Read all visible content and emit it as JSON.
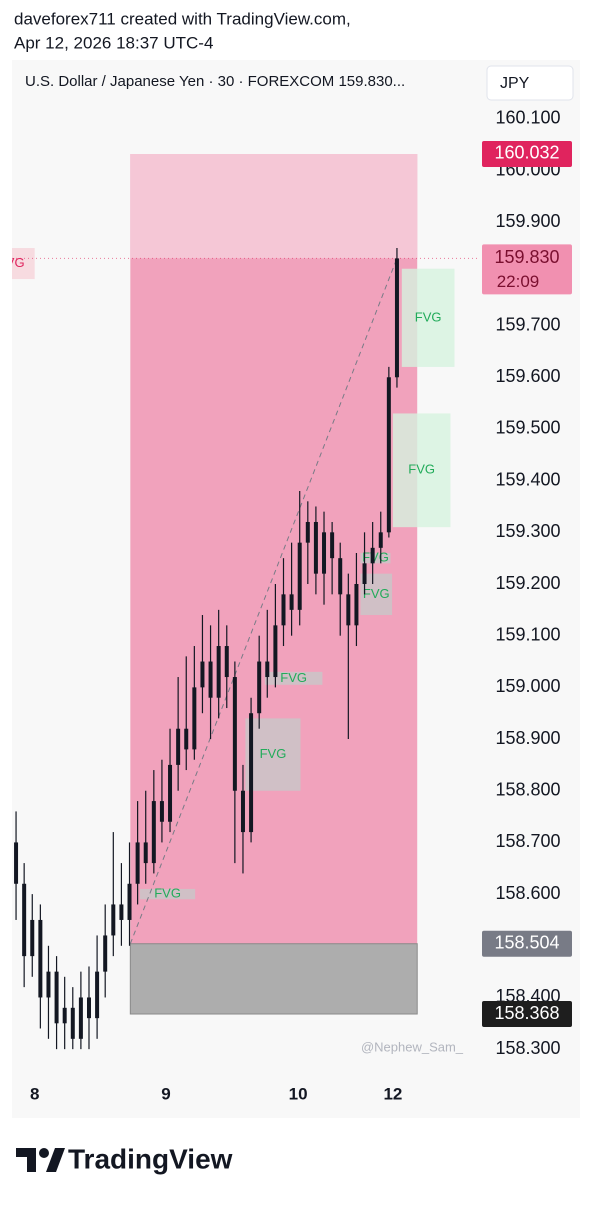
{
  "header": {
    "line1": "daveforex711 created with TradingView.com,",
    "line2": "Apr 12, 2026 18:37 UTC-4"
  },
  "chart_data": {
    "type": "candlestick",
    "title": "U.S. Dollar / Japanese Yen · 30 · FOREXCOM  159.830...",
    "currency": "JPY",
    "color": "#131722",
    "open": [
      158.7,
      158.62,
      158.48,
      158.55,
      158.4,
      158.45,
      158.35,
      158.38,
      158.32,
      158.4,
      158.36,
      158.45,
      158.52,
      158.58,
      158.55,
      158.62,
      158.7,
      158.66,
      158.78,
      158.74,
      158.85,
      158.92,
      158.88,
      159.0,
      159.05,
      158.98,
      159.08,
      159.02,
      158.8,
      158.72,
      158.95,
      159.05,
      159.02,
      159.12,
      159.18,
      159.15,
      159.28,
      159.32,
      159.22,
      159.3,
      159.25,
      159.18,
      159.12,
      159.2,
      159.24,
      159.27,
      159.3,
      159.6
    ],
    "high": [
      158.76,
      158.66,
      158.6,
      158.58,
      158.5,
      158.48,
      158.44,
      158.42,
      158.45,
      158.46,
      158.52,
      158.58,
      158.72,
      158.66,
      158.7,
      158.78,
      158.8,
      158.84,
      158.86,
      158.92,
      159.02,
      159.06,
      159.08,
      159.14,
      159.12,
      159.15,
      159.12,
      159.05,
      158.85,
      158.98,
      159.1,
      159.15,
      159.2,
      159.25,
      159.28,
      159.38,
      159.36,
      159.35,
      159.34,
      159.32,
      159.28,
      159.22,
      159.26,
      159.3,
      159.32,
      159.34,
      159.62,
      159.85
    ],
    "low": [
      158.55,
      158.42,
      158.44,
      158.34,
      158.32,
      158.3,
      158.3,
      158.3,
      158.3,
      158.3,
      158.32,
      158.4,
      158.48,
      158.5,
      158.5,
      158.58,
      158.62,
      158.64,
      158.7,
      158.72,
      158.8,
      158.84,
      158.86,
      158.95,
      158.9,
      158.94,
      158.96,
      158.66,
      158.64,
      158.7,
      158.92,
      158.98,
      159.0,
      159.08,
      159.1,
      159.12,
      159.2,
      159.18,
      159.16,
      159.18,
      159.1,
      158.9,
      159.08,
      159.18,
      159.2,
      159.24,
      159.29,
      159.58
    ],
    "close": [
      158.62,
      158.48,
      158.55,
      158.4,
      158.45,
      158.35,
      158.38,
      158.32,
      158.4,
      158.36,
      158.45,
      158.52,
      158.58,
      158.55,
      158.62,
      158.7,
      158.66,
      158.78,
      158.74,
      158.85,
      158.92,
      158.88,
      159.0,
      159.05,
      158.98,
      159.08,
      159.02,
      158.8,
      158.72,
      158.95,
      159.05,
      159.02,
      159.12,
      159.18,
      159.15,
      159.28,
      159.32,
      159.22,
      159.3,
      159.25,
      159.18,
      159.12,
      159.2,
      159.24,
      159.27,
      159.3,
      159.6,
      159.83
    ],
    "xlim": [
      -0.5,
      57
    ],
    "xticks": [
      {
        "value": 2.3,
        "label": "8"
      },
      {
        "value": 18.5,
        "label": "9"
      },
      {
        "value": 34.8,
        "label": "10"
      },
      {
        "value": 46.5,
        "label": "12"
      }
    ],
    "ylim": [
      158.25,
      160.21
    ],
    "yticks": [
      {
        "value": 160.1,
        "label": "160.100"
      },
      {
        "value": 160.0,
        "label": "160.000"
      },
      {
        "value": 159.9,
        "label": "159.900"
      },
      {
        "value": 159.8,
        "label": "159.800"
      },
      {
        "value": 159.7,
        "label": "159.700"
      },
      {
        "value": 159.6,
        "label": "159.600"
      },
      {
        "value": 159.5,
        "label": "159.500"
      },
      {
        "value": 159.4,
        "label": "159.400"
      },
      {
        "value": 159.3,
        "label": "159.300"
      },
      {
        "value": 159.2,
        "label": "159.200"
      },
      {
        "value": 159.1,
        "label": "159.100"
      },
      {
        "value": 159.0,
        "label": "159.000"
      },
      {
        "value": 158.9,
        "label": "158.900"
      },
      {
        "value": 158.8,
        "label": "158.800"
      },
      {
        "value": 158.7,
        "label": "158.700"
      },
      {
        "value": 158.6,
        "label": "158.600"
      },
      {
        "value": 158.5,
        "label": "158.500"
      },
      {
        "value": 158.4,
        "label": "158.400"
      },
      {
        "value": 158.3,
        "label": "158.300"
      }
    ],
    "position": {
      "start": 14.1,
      "end": 49.5,
      "target": 160.032,
      "target_label": "160.032",
      "entry": 158.504,
      "entry_label": "158.504",
      "stop": 158.368,
      "stop_label": "158.368"
    },
    "last_price": {
      "value": 159.83,
      "label": "159.830",
      "countdown": "22:09"
    },
    "fvg": [
      {
        "label": "FVG",
        "top": 159.81,
        "bottom": 159.62,
        "start": 47.6,
        "end": 54.1,
        "color": "#d6f3de",
        "label_color": "#22ab5a"
      },
      {
        "label": "FVG",
        "top": 159.53,
        "bottom": 159.31,
        "start": 46.5,
        "end": 53.6,
        "color": "#d6f3de",
        "label_color": "#22ab5a"
      },
      {
        "label": "FVG",
        "top": 159.26,
        "bottom": 159.24,
        "start": 42.5,
        "end": 46.2,
        "color": "#c8c8c8",
        "label_color": "#22ab5a"
      },
      {
        "label": "FVG",
        "top": 159.22,
        "bottom": 159.14,
        "start": 42.5,
        "end": 46.4,
        "color": "#c8c8c8",
        "label_color": "#22ab5a"
      },
      {
        "label": "FVG",
        "top": 159.03,
        "bottom": 159.005,
        "start": 30.7,
        "end": 37.8,
        "color": "#c8c8c8",
        "label_color": "#22ab5a"
      },
      {
        "label": "FVG",
        "top": 158.94,
        "bottom": 158.8,
        "start": 28.3,
        "end": 35.1,
        "color": "#c8c8c8",
        "label_color": "#22ab5a"
      },
      {
        "label": "FVG",
        "top": 158.61,
        "bottom": 158.59,
        "start": 15.3,
        "end": 22.1,
        "color": "#c8c8c8",
        "label_color": "#22ab5a"
      },
      {
        "label": "FVG",
        "top": 159.85,
        "bottom": 159.79,
        "start": -3.5,
        "end": 2.3,
        "color": "#f6d3d9",
        "label_color": "#e0245e"
      }
    ],
    "watermark": "@Nephew_Sam_"
  },
  "footer": {
    "brand": "TradingView"
  }
}
